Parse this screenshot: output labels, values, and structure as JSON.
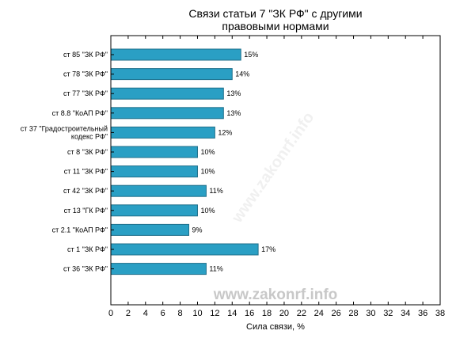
{
  "chart_data": {
    "type": "bar",
    "orientation": "horizontal",
    "title": [
      "Связи статьи 7 \"ЗК РФ\" с другими",
      "правовыми нормами"
    ],
    "xlabel": "Сила связи, %",
    "ylabel": "",
    "xlim": [
      0,
      38
    ],
    "xticks": [
      0,
      2,
      4,
      6,
      8,
      10,
      12,
      14,
      16,
      18,
      20,
      22,
      24,
      26,
      28,
      30,
      32,
      34,
      36,
      38
    ],
    "grid": false,
    "categories": [
      [
        "ст 85 \"ЗК РФ\""
      ],
      [
        "ст 78 \"ЗК РФ\""
      ],
      [
        "ст 77 \"ЗК РФ\""
      ],
      [
        "ст 8.8 \"КоАП РФ\""
      ],
      [
        "ст 37 \"Градостроительный",
        "кодекс РФ\""
      ],
      [
        "ст 8 \"ЗК РФ\""
      ],
      [
        "ст 11 \"ЗК РФ\""
      ],
      [
        "ст 42 \"ЗК РФ\""
      ],
      [
        "ст 13 \"ГК РФ\""
      ],
      [
        "ст 2.1 \"КоАП РФ\""
      ],
      [
        "ст 1 \"ЗК РФ\""
      ],
      [
        "ст 36 \"ЗК РФ\""
      ]
    ],
    "values": [
      15,
      14,
      13,
      13,
      12,
      10,
      10,
      11,
      10,
      9,
      17,
      11
    ],
    "value_labels": [
      "15%",
      "14%",
      "13%",
      "13%",
      "12%",
      "10%",
      "10%",
      "11%",
      "10%",
      "9%",
      "17%",
      "11%"
    ],
    "bar_color": "#2a9fc4",
    "bar_edge_color": "#1f6f8a"
  },
  "watermark": "www.zakonrf.info"
}
